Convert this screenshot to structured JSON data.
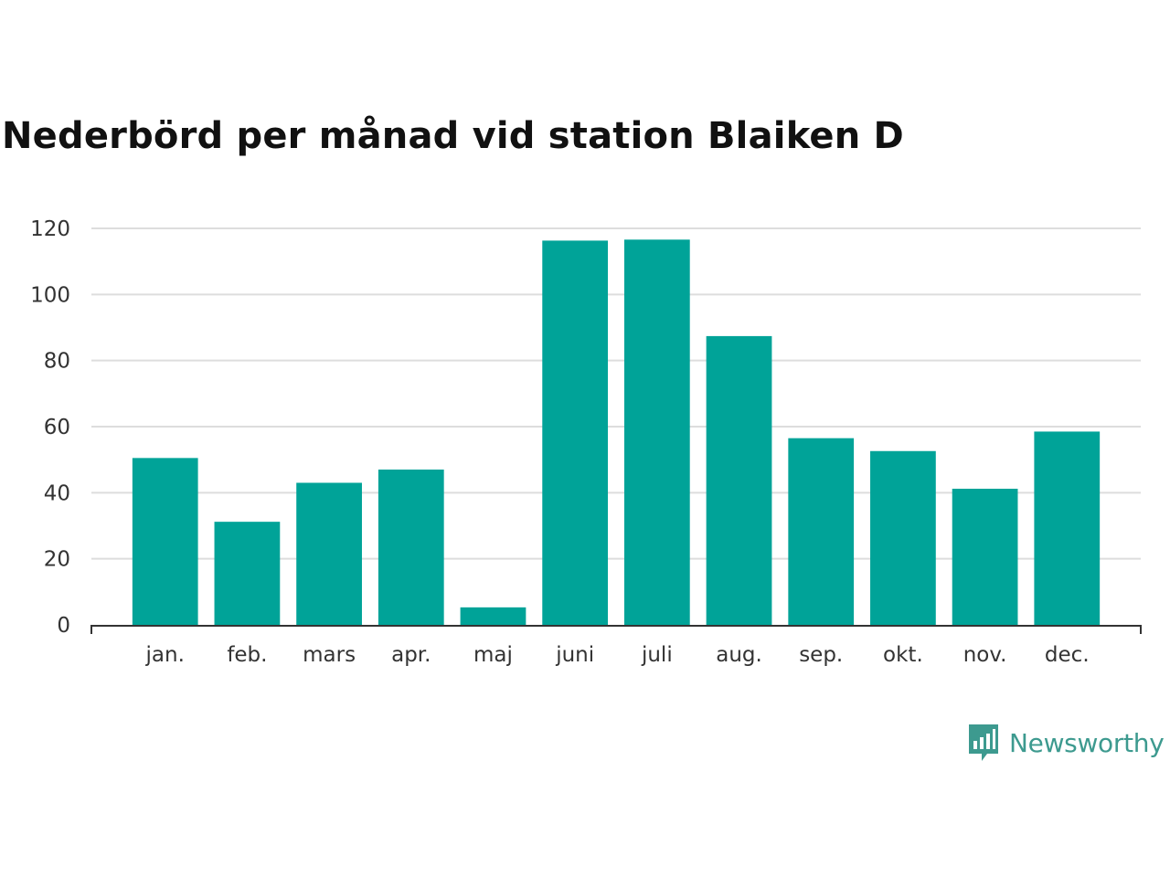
{
  "colors": {
    "bar": "#00a398",
    "grid": "#dddddd",
    "axis": "#333333",
    "brand": "#3d9a8f"
  },
  "brand": {
    "name": "Newsworthy",
    "icon": "bar-chart-speech-bubble-icon"
  },
  "chart_data": {
    "type": "bar",
    "title": "Nederbörd per månad vid station Blaiken D",
    "xlabel": "",
    "ylabel": "",
    "categories": [
      "jan.",
      "feb.",
      "mars",
      "apr.",
      "maj",
      "juni",
      "juli",
      "aug.",
      "sep.",
      "okt.",
      "nov.",
      "dec."
    ],
    "values": [
      50.5,
      31.2,
      43.0,
      47.0,
      5.3,
      116.3,
      116.6,
      87.4,
      56.5,
      52.6,
      41.2,
      58.5
    ],
    "ylim": [
      0,
      120
    ],
    "yticks": [
      0,
      20,
      40,
      60,
      80,
      100,
      120
    ],
    "grid": true,
    "legend": "none"
  }
}
